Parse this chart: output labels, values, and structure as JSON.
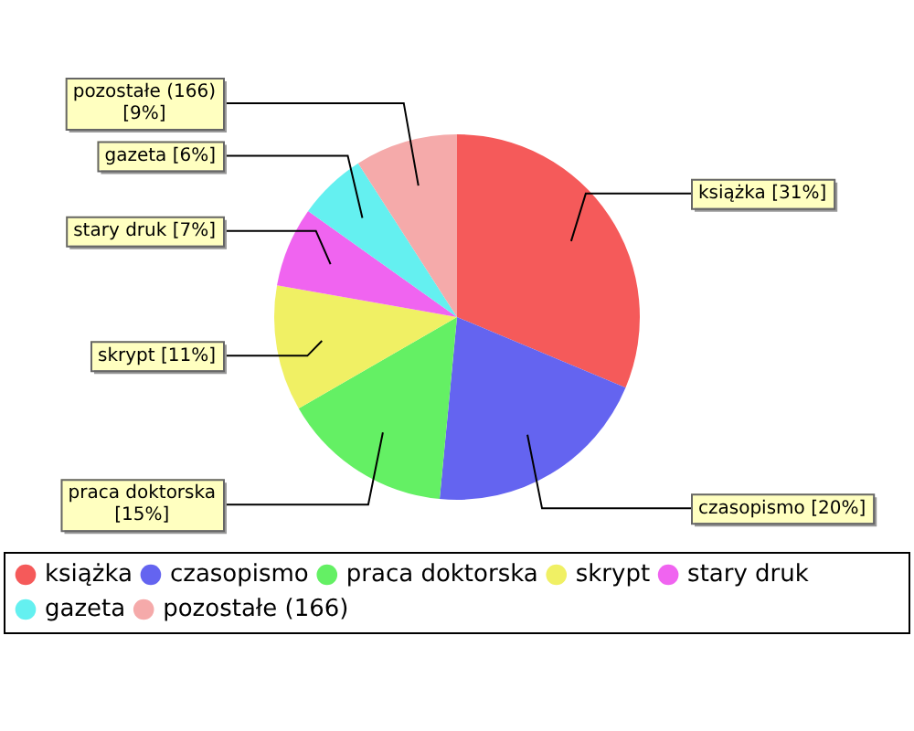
{
  "chart_data": {
    "type": "pie",
    "categories": [
      "książka",
      "czasopismo",
      "praca doktorska",
      "skrypt",
      "stary druk",
      "gazeta",
      "pozostałe (166)"
    ],
    "values": [
      31,
      20,
      15,
      11,
      7,
      6,
      9
    ],
    "colors": [
      "#f55a5a",
      "#6464f0",
      "#64f064",
      "#f0f064",
      "#f064f0",
      "#64f0f0",
      "#f5aaaa"
    ],
    "value_labels": [
      "książka [31%]",
      "czasopismo [20%]",
      "praca doktorska [15%]",
      "skrypt [11%]",
      "stary druk [7%]",
      "gazeta [6%]",
      "pozostałe (166) [9%]"
    ],
    "legend": "bottom"
  }
}
